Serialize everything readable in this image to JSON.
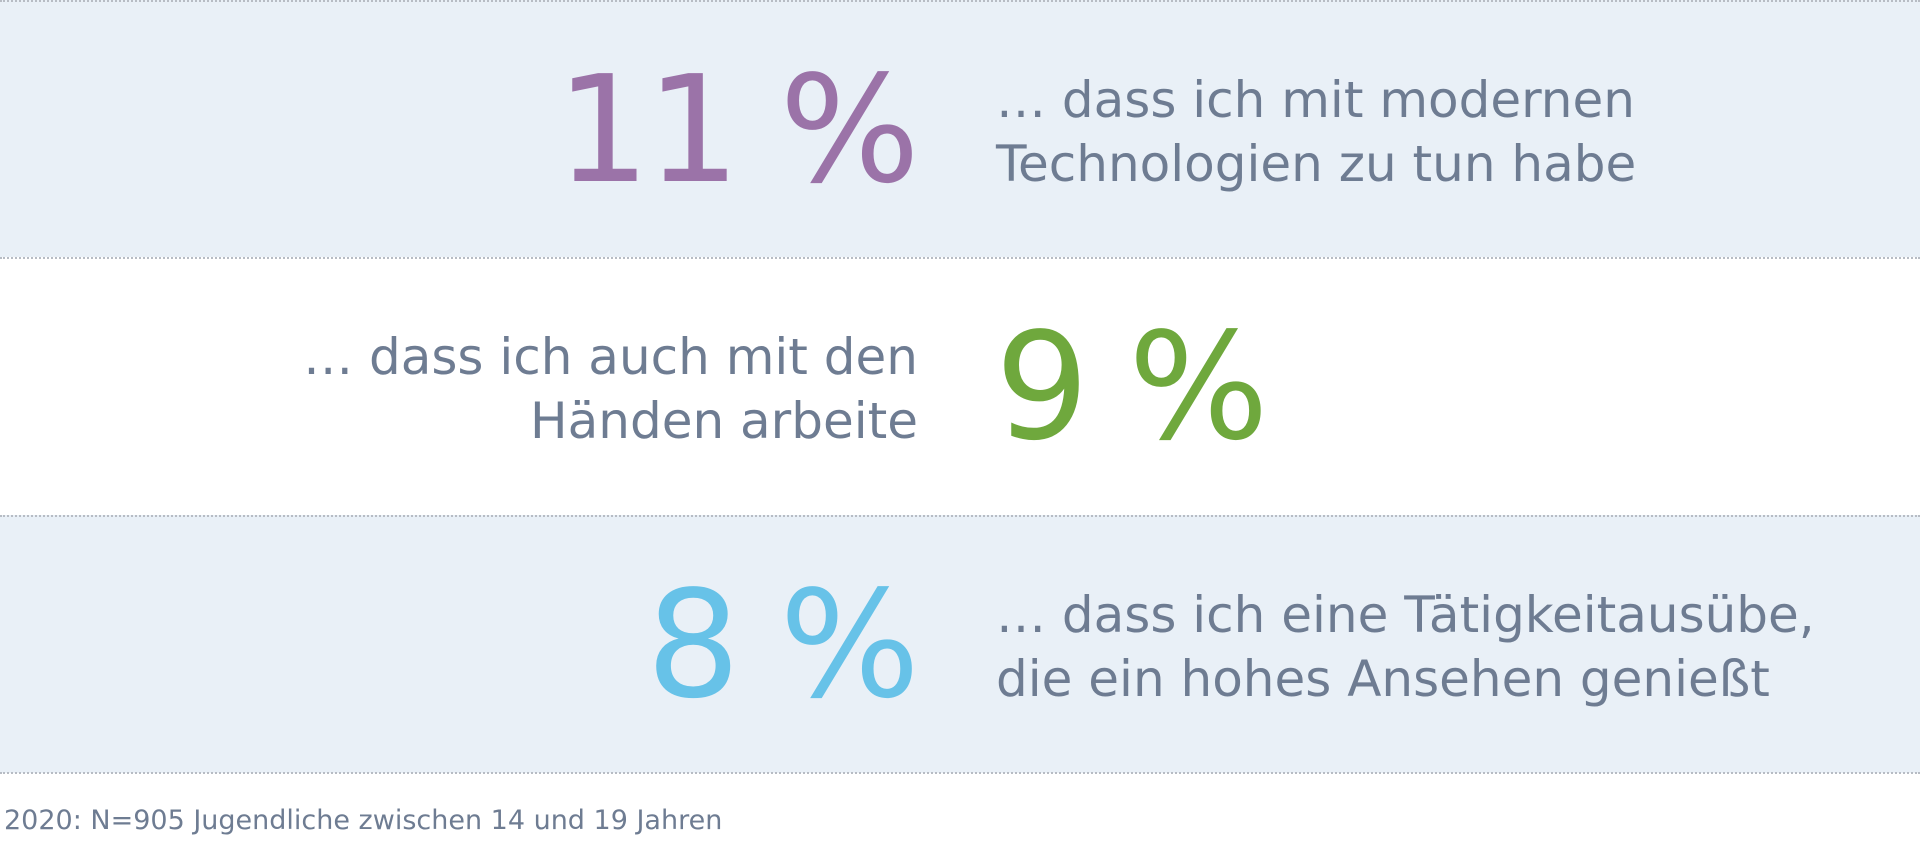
{
  "chart_data": {
    "type": "table",
    "rows": [
      {
        "value_text": "11 %",
        "value": 11,
        "unit": "%",
        "color": "#9b73a8",
        "label_lines": [
          "… dass ich mit modernen",
          "Technologien zu tun habe"
        ]
      },
      {
        "value_text": "9 %",
        "value": 9,
        "unit": "%",
        "color": "#6fa83d",
        "label_lines": [
          "… dass ich auch mit den",
          "Händen arbeite"
        ]
      },
      {
        "value_text": "8 %",
        "value": 8,
        "unit": "%",
        "color": "#67c2e8",
        "label_lines": [
          "… dass ich eine Tätigkeitausübe,",
          "die ein hohes Ansehen genießt"
        ]
      }
    ],
    "footnote": "2020: N=905 Jugendliche zwischen 14 und 19 Jahren"
  },
  "colors": {
    "shaded_row": "#e9f0f7",
    "label_text": "#6e7c92",
    "divider": "#b7bcc4"
  }
}
